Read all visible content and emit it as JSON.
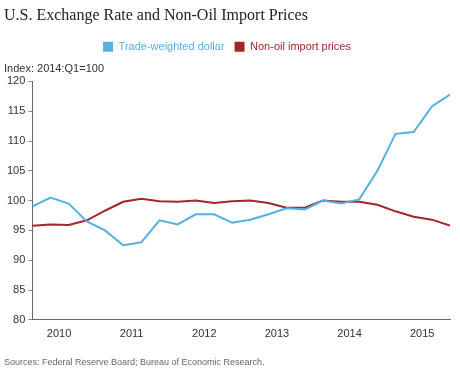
{
  "chart_data": {
    "type": "line",
    "title": "U.S. Exchange Rate and Non-Oil Import Prices",
    "ylabel": "Index: 2014:Q1=100",
    "source": "Sources: Federal Reserve Board; Bureau of Economic Research.",
    "categories": [
      null,
      "2010",
      null,
      null,
      null,
      "2011",
      null,
      null,
      null,
      "2012",
      null,
      null,
      null,
      "2013",
      null,
      null,
      null,
      "2014",
      null,
      null,
      null,
      "2015",
      null,
      null
    ],
    "series": [
      {
        "name": "Trade-weighted dollar",
        "color": "#56b0e0",
        "values": [
          99,
          100.5,
          99.5,
          96.5,
          95,
          92.5,
          93,
          96.7,
          96,
          97.7,
          97.7,
          96.3,
          96.8,
          97.7,
          98.7,
          98.5,
          100,
          99.5,
          100.2,
          105,
          111.2,
          111.5,
          115.8,
          117.8
        ]
      },
      {
        "name": "Non-oil import prices",
        "color": "#a3262b",
        "values": [
          95.8,
          96,
          95.9,
          96.7,
          98.3,
          99.8,
          100.3,
          99.9,
          99.8,
          100,
          99.6,
          99.9,
          100,
          99.6,
          98.8,
          98.8,
          100,
          99.8,
          99.8,
          99.3,
          98.2,
          97.3,
          96.8,
          95.8
        ]
      }
    ],
    "ylim": [
      80,
      120
    ],
    "yticks": [
      80,
      85,
      90,
      95,
      100,
      105,
      110,
      115,
      120
    ],
    "grid": false,
    "legend": "top"
  }
}
